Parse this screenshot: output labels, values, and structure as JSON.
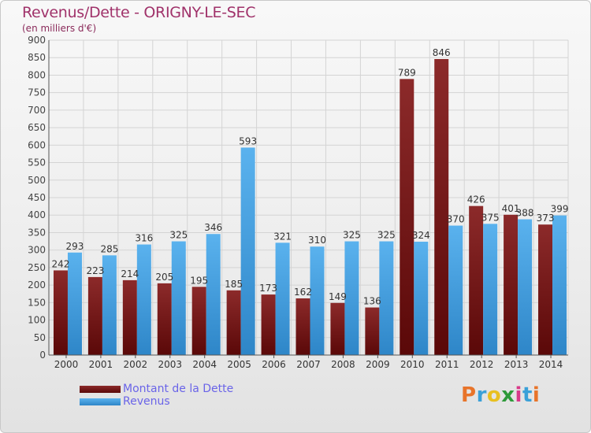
{
  "title": "Revenus/Dette - ORIGNY-LE-SEC",
  "subtitle": "(en milliers d'€)",
  "logo": {
    "text": "Proxiti",
    "colors": [
      "#e8742a",
      "#3aa0d8",
      "#e8c020",
      "#2e9a3a",
      "#d83a8a",
      "#3aa0d8",
      "#e8742a"
    ]
  },
  "colors": {
    "dette": "#7a1c1c",
    "revenus": "#4aa4e4",
    "title": "#a0326a",
    "legend_text": "#6a64e8"
  },
  "chart_data": {
    "type": "bar",
    "title": "Revenus/Dette - ORIGNY-LE-SEC",
    "subtitle": "(en milliers d'€)",
    "xlabel": "",
    "ylabel": "",
    "ylim": [
      0,
      900
    ],
    "yticks": [
      0,
      50,
      100,
      150,
      200,
      250,
      300,
      350,
      400,
      450,
      500,
      550,
      600,
      650,
      700,
      750,
      800,
      850,
      900
    ],
    "grid": true,
    "legend_position": "bottom-left",
    "categories": [
      "2000",
      "2001",
      "2002",
      "2003",
      "2004",
      "2005",
      "2006",
      "2007",
      "2008",
      "2009",
      "2010",
      "2011",
      "2012",
      "2013",
      "2014"
    ],
    "series": [
      {
        "name": "Montant de la Dette",
        "values": [
          242,
          223,
          214,
          205,
          195,
          185,
          173,
          162,
          149,
          136,
          789,
          846,
          426,
          401,
          373
        ]
      },
      {
        "name": "Revenus",
        "values": [
          293,
          285,
          316,
          325,
          346,
          593,
          321,
          310,
          325,
          325,
          324,
          370,
          375,
          388,
          399
        ]
      }
    ]
  }
}
